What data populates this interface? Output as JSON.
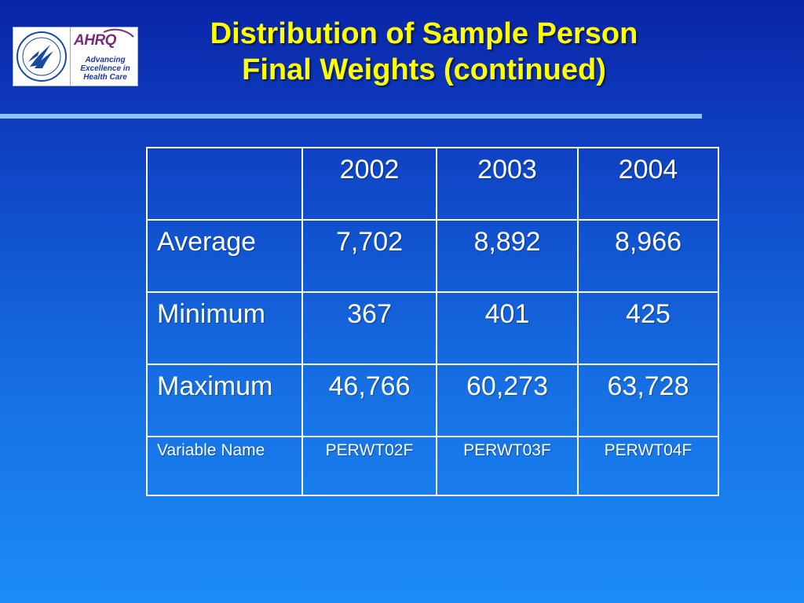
{
  "slide": {
    "title_line1": "Distribution of Sample Person",
    "title_line2": "Final Weights (continued)"
  },
  "logos": {
    "hhs_seal": "hhs-seal-icon",
    "ahrq_wordmark": "AHRQ",
    "ahrq_tagline": "Advancing Excellence in Health Care"
  },
  "colors": {
    "title": "#ffff00",
    "background_top": "#0a24a8",
    "background_bottom": "#1c8cf6",
    "rule": "#8cc4ff",
    "table_text": "#ffffff"
  },
  "table": {
    "header": [
      "",
      "2002",
      "2003",
      "2004"
    ],
    "rows": [
      {
        "label": "Average",
        "values": [
          "7,702",
          "8,892",
          "8,966"
        ]
      },
      {
        "label": "Minimum",
        "values": [
          "367",
          "401",
          "425"
        ]
      },
      {
        "label": "Maximum",
        "values": [
          "46,766",
          "60,273",
          "63,728"
        ]
      },
      {
        "label": "Variable Name",
        "values": [
          "PERWT02F",
          "PERWT03F",
          "PERWT04F"
        ]
      }
    ]
  }
}
